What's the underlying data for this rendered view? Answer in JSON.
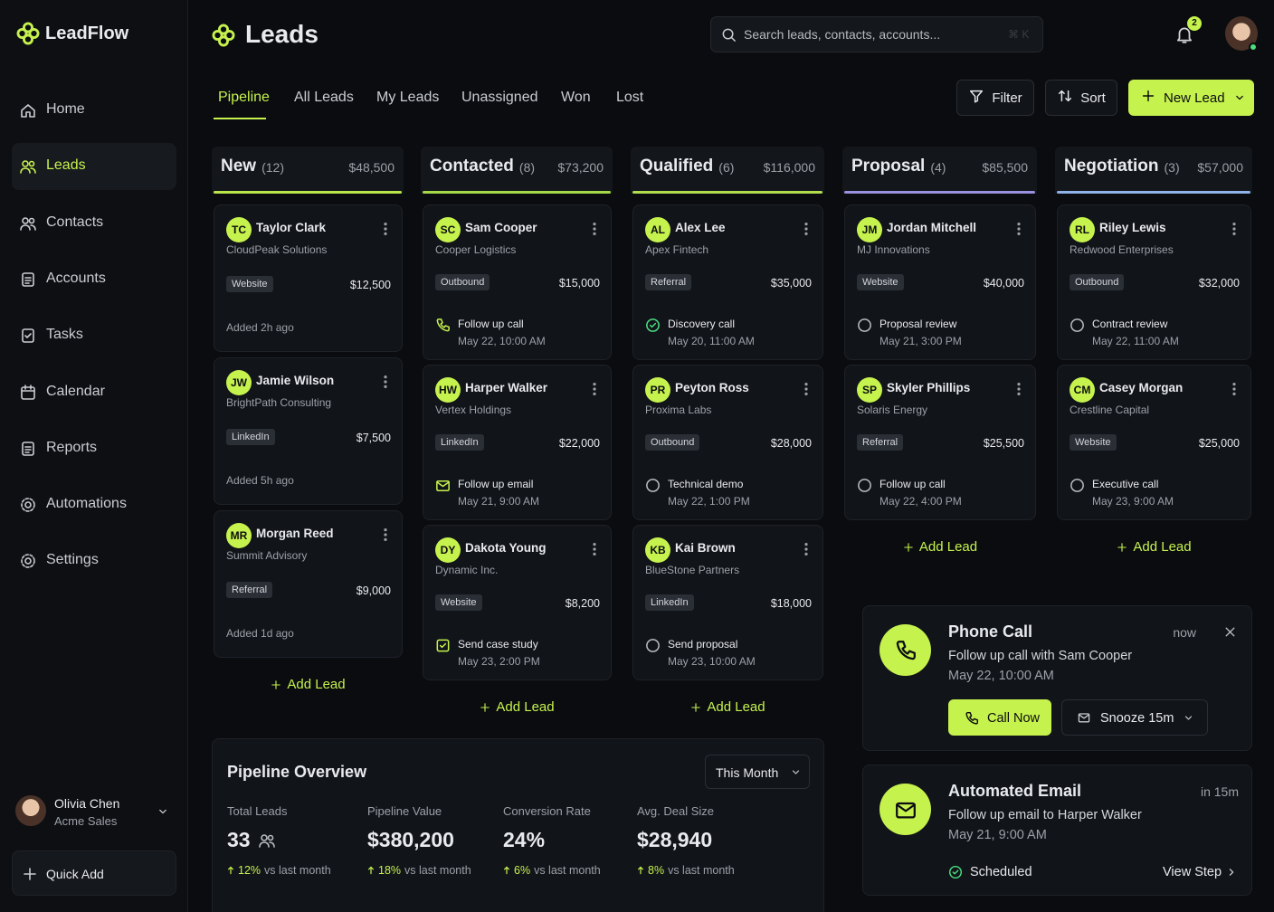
{
  "app": {
    "brand": "LeadFlow"
  },
  "sidebar": {
    "nav": [
      {
        "label": "Home"
      },
      {
        "label": "Leads",
        "active": true
      },
      {
        "label": "Contacts"
      },
      {
        "label": "Accounts"
      },
      {
        "label": "Tasks"
      },
      {
        "label": "Calendar"
      },
      {
        "label": "Reports"
      },
      {
        "label": "Automations"
      },
      {
        "label": "Settings"
      }
    ],
    "user": {
      "name": "Olivia Chen",
      "role": "Acme Sales"
    },
    "quick_add": "Quick Add"
  },
  "header": {
    "title": "Leads",
    "search_placeholder": "Search leads, contacts, accounts...",
    "shortcut": "⌘ K",
    "notifications": 2
  },
  "tabs": [
    {
      "label": "Pipeline",
      "active": true
    },
    {
      "label": "All Leads"
    },
    {
      "label": "My Leads"
    },
    {
      "label": "Unassigned"
    },
    {
      "label": "Won"
    },
    {
      "label": "Lost"
    }
  ],
  "actions": {
    "filter": "Filter",
    "sort": "Sort",
    "new_lead": "New Lead"
  },
  "columns": [
    {
      "name": "New",
      "count": "(12)",
      "total": "$48,500",
      "color": "#b9e64a",
      "add_label": "Add Lead",
      "cards": [
        {
          "initials": "TC",
          "name": "Taylor Clark",
          "company": "CloudPeak Solutions",
          "source": "Website",
          "amount": "$12,500",
          "footer": "Added 2h ago"
        },
        {
          "initials": "JW",
          "name": "Jamie Wilson",
          "company": "BrightPath Consulting",
          "source": "LinkedIn",
          "amount": "$7,500",
          "footer": "Added 5h ago"
        },
        {
          "initials": "MR",
          "name": "Morgan Reed",
          "company": "Summit Advisory",
          "source": "Referral",
          "amount": "$9,000",
          "footer": "Added 1d ago"
        }
      ]
    },
    {
      "name": "Contacted",
      "count": "(8)",
      "total": "$73,200",
      "color": "#a6d94a",
      "add_label": "Add Lead",
      "cards": [
        {
          "initials": "SC",
          "name": "Sam Cooper",
          "company": "Cooper Logistics",
          "source": "Outbound",
          "amount": "$15,000",
          "activity": "Follow up call",
          "time": "May 22, 10:00 AM",
          "icon": "phone"
        },
        {
          "initials": "HW",
          "name": "Harper Walker",
          "company": "Vertex Holdings",
          "source": "LinkedIn",
          "amount": "$22,000",
          "activity": "Follow up email",
          "time": "May 21, 9:00 AM",
          "icon": "mail"
        },
        {
          "initials": "DY",
          "name": "Dakota Young",
          "company": "Dynamic Inc.",
          "source": "Website",
          "amount": "$8,200",
          "activity": "Send case study",
          "time": "May 23, 2:00 PM",
          "icon": "box"
        }
      ]
    },
    {
      "name": "Qualified",
      "count": "(6)",
      "total": "$116,000",
      "color": "#b2dd4c",
      "add_label": "Add Lead",
      "cards": [
        {
          "initials": "AL",
          "name": "Alex Lee",
          "company": "Apex Fintech",
          "source": "Referral",
          "amount": "$35,000",
          "activity": "Discovery call",
          "time": "May 20, 11:00 AM",
          "icon": "done"
        },
        {
          "initials": "PR",
          "name": "Peyton Ross",
          "company": "Proxima Labs",
          "source": "Outbound",
          "amount": "$28,000",
          "activity": "Technical demo",
          "time": "May 22, 1:00 PM",
          "icon": "circle"
        },
        {
          "initials": "KB",
          "name": "Kai Brown",
          "company": "BlueStone Partners",
          "source": "LinkedIn",
          "amount": "$18,000",
          "activity": "Send proposal",
          "time": "May 23, 10:00 AM",
          "icon": "circle"
        }
      ]
    },
    {
      "name": "Proposal",
      "count": "(4)",
      "total": "$85,500",
      "color": "#9b8fe0",
      "add_label": "Add Lead",
      "cards": [
        {
          "initials": "JM",
          "name": "Jordan Mitchell",
          "company": "MJ Innovations",
          "source": "Website",
          "amount": "$40,000",
          "activity": "Proposal review",
          "time": "May 21, 3:00 PM",
          "icon": "circle"
        },
        {
          "initials": "SP",
          "name": "Skyler Phillips",
          "company": "Solaris Energy",
          "source": "Referral",
          "amount": "$25,500",
          "activity": "Follow up call",
          "time": "May 22, 4:00 PM",
          "icon": "circle"
        }
      ]
    },
    {
      "name": "Negotiation",
      "count": "(3)",
      "total": "$57,000",
      "color": "#8fb3e8",
      "add_label": "Add Lead",
      "cards": [
        {
          "initials": "RL",
          "name": "Riley Lewis",
          "company": "Redwood Enterprises",
          "source": "Outbound",
          "amount": "$32,000",
          "activity": "Contract review",
          "time": "May 22, 11:00 AM",
          "icon": "circle"
        },
        {
          "initials": "CM",
          "name": "Casey Morgan",
          "company": "Crestline Capital",
          "source": "Website",
          "amount": "$25,000",
          "activity": "Executive call",
          "time": "May 23, 9:00 AM",
          "icon": "circle"
        }
      ]
    }
  ],
  "overview": {
    "title": "Pipeline Overview",
    "period": "This Month",
    "metrics": [
      {
        "label": "Total Leads",
        "value": "33",
        "change": "12%",
        "note": "vs last month"
      },
      {
        "label": "Pipeline Value",
        "value": "$380,200",
        "change": "18%",
        "note": "vs last month"
      },
      {
        "label": "Conversion Rate",
        "value": "24%",
        "change": "6%",
        "note": "vs last month"
      },
      {
        "label": "Avg. Deal Size",
        "value": "$28,940",
        "change": "8%",
        "note": "vs last month"
      }
    ]
  },
  "notifications": [
    {
      "title": "Phone Call",
      "time": "now",
      "text": "Follow up call with Sam Cooper",
      "when": "May 22, 10:00 AM",
      "primary": "Call Now",
      "secondary": "Snooze 15m"
    },
    {
      "title": "Automated Email",
      "time": "in 15m",
      "text": "Follow up email to Harper Walker",
      "when": "May 21, 9:00 AM",
      "status": "Scheduled",
      "link": "View Step"
    }
  ]
}
